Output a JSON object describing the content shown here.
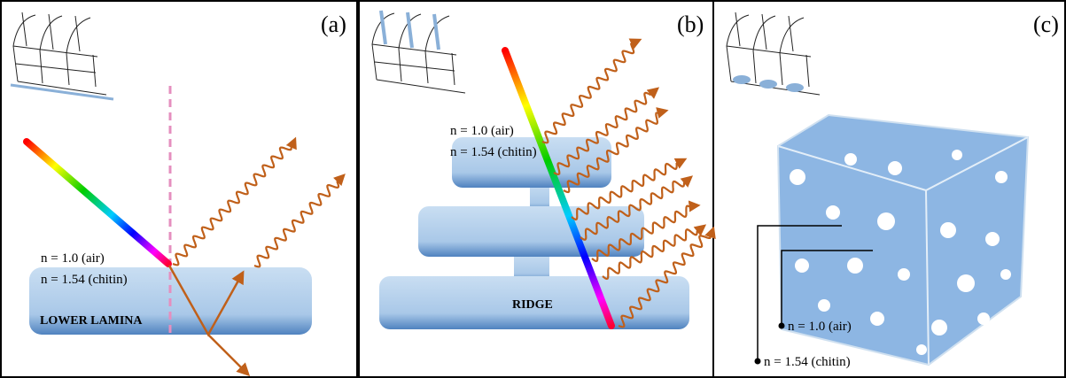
{
  "panels": [
    {
      "label": "(a)",
      "air": "n = 1.0 (air)",
      "chitin": "n = 1.54 (chitin)",
      "structure": "LOWER LAMINA"
    },
    {
      "label": "(b)",
      "air": "n = 1.0 (air)",
      "chitin": "n = 1.54 (chitin)",
      "structure": "RIDGE"
    },
    {
      "label": "(c)",
      "air": "n = 1.0 (air)",
      "chitin": "n = 1.54 (chitin)"
    }
  ]
}
